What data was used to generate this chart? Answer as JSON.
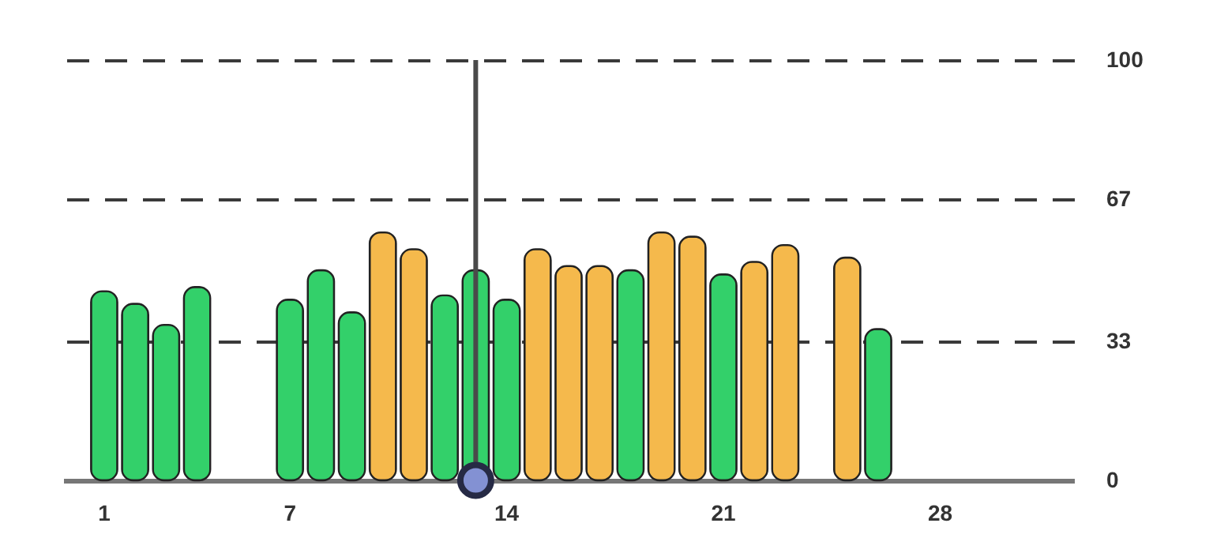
{
  "chart_data": {
    "type": "bar",
    "categories": [
      "1",
      null,
      null,
      null,
      null,
      null,
      "7",
      null,
      null,
      null,
      null,
      null,
      null,
      "14",
      null,
      null,
      null,
      null,
      null,
      null,
      "21",
      null,
      null,
      null,
      null,
      null,
      null,
      "28",
      null,
      null,
      null
    ],
    "values": [
      45,
      42,
      37,
      46,
      null,
      null,
      43,
      50,
      40,
      59,
      55,
      44,
      50,
      43,
      55,
      51,
      51,
      50,
      59,
      58,
      49,
      52,
      56,
      null,
      53,
      36,
      null,
      null,
      null,
      null,
      null
    ],
    "colors": [
      "#33d06a",
      "#33d06a",
      "#33d06a",
      "#33d06a",
      null,
      null,
      "#33d06a",
      "#33d06a",
      "#33d06a",
      "#f5b94c",
      "#f5b94c",
      "#33d06a",
      "#33d06a",
      "#33d06a",
      "#f5b94c",
      "#f5b94c",
      "#f5b94c",
      "#33d06a",
      "#f5b94c",
      "#f5b94c",
      "#33d06a",
      "#f5b94c",
      "#f5b94c",
      null,
      "#f5b94c",
      "#33d06a",
      null,
      null,
      null,
      null,
      null
    ],
    "ylim": [
      0,
      100
    ],
    "yticks": [
      0,
      33,
      67,
      100
    ],
    "grid": "y",
    "line_style": "dashed"
  }
}
